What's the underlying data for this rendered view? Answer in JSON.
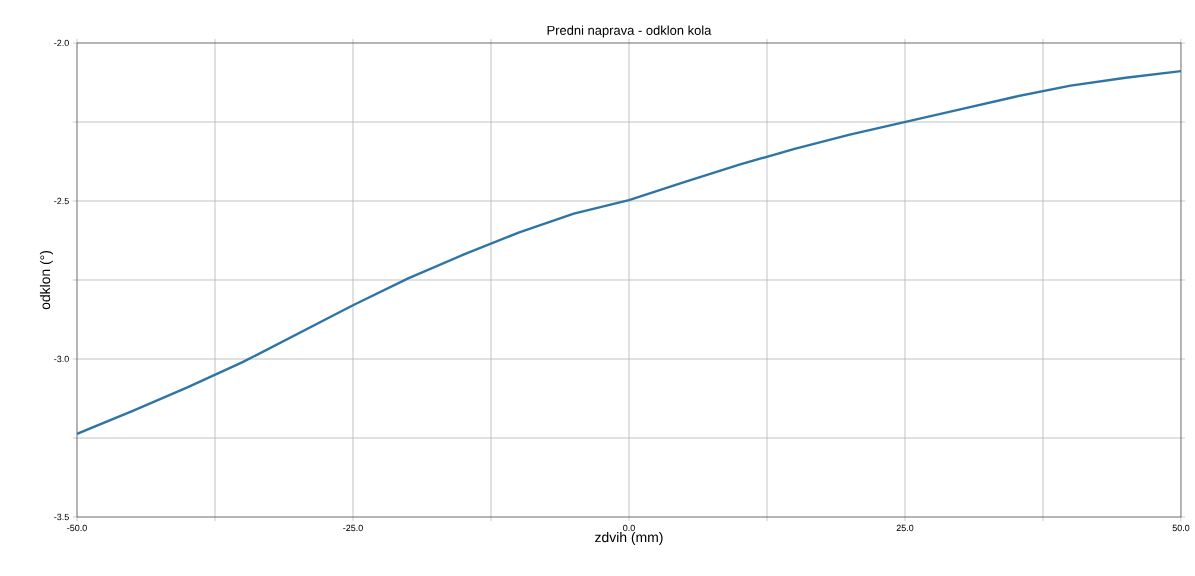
{
  "chart_data": {
    "type": "line",
    "title": "Predni naprava - odklon kola",
    "xlabel": "zdvih (mm)",
    "ylabel": "odklon (°)",
    "x": [
      -50,
      -45,
      -40,
      -35,
      -30,
      -25,
      -20,
      -15,
      -10,
      -5,
      0,
      5,
      10,
      15,
      20,
      25,
      30,
      35,
      40,
      45,
      50
    ],
    "values": [
      -3.237,
      -3.165,
      -3.09,
      -3.01,
      -2.92,
      -2.83,
      -2.745,
      -2.67,
      -2.6,
      -2.54,
      -2.497,
      -2.44,
      -2.385,
      -2.335,
      -2.29,
      -2.25,
      -2.21,
      -2.17,
      -2.135,
      -2.11,
      -2.089
    ],
    "color": "#2e75a6",
    "xlim": [
      -50,
      50
    ],
    "ylim": [
      -3.5,
      -2.0
    ],
    "xticks": [
      {
        "value": -50,
        "label": "-50.0"
      },
      {
        "value": -37.5,
        "label": null
      },
      {
        "value": -25,
        "label": "-25.0"
      },
      {
        "value": -12.5,
        "label": null
      },
      {
        "value": 0,
        "label": "0.0"
      },
      {
        "value": 12.5,
        "label": null
      },
      {
        "value": 25,
        "label": "25.0"
      },
      {
        "value": 37.5,
        "label": null
      },
      {
        "value": 50,
        "label": "50.0"
      }
    ],
    "yticks": [
      {
        "value": -3.5,
        "label": "-3.5"
      },
      {
        "value": -3.25,
        "label": null
      },
      {
        "value": -3.0,
        "label": "-3.0"
      },
      {
        "value": -2.75,
        "label": null
      },
      {
        "value": -2.5,
        "label": "-2.5"
      },
      {
        "value": -2.25,
        "label": null
      },
      {
        "value": -2.0,
        "label": "-2.0"
      }
    ],
    "grid": true
  }
}
